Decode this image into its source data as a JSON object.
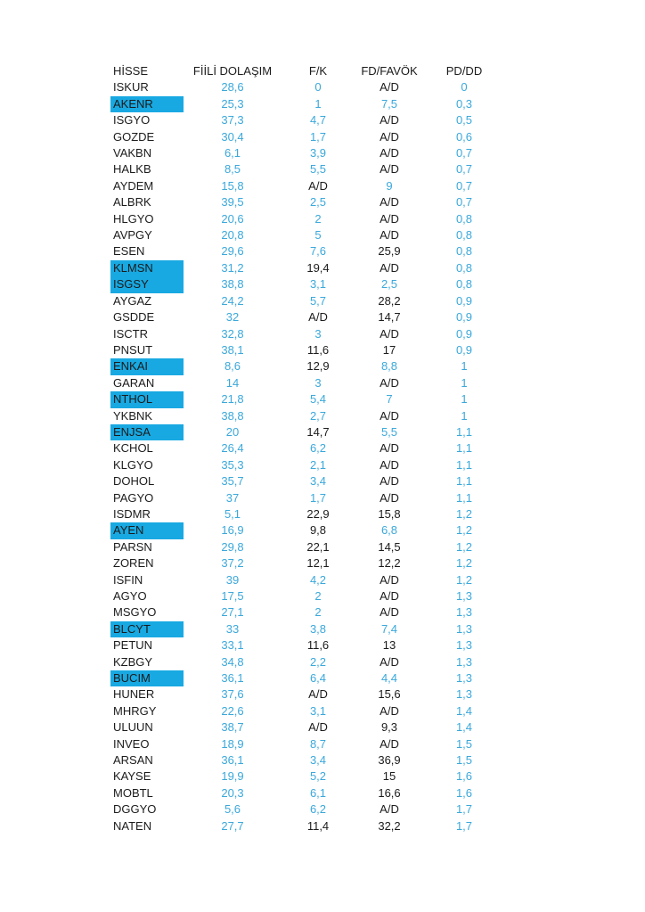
{
  "page": {
    "background": "#ffffff"
  },
  "colors": {
    "value_blue": "#3aa8db",
    "value_black": "#1b1b1b",
    "highlight_fill": "#18a9e2",
    "header_text": "#1b1b1b"
  },
  "table": {
    "columns": [
      "HİSSE",
      "FİİLİ DOLAŞIM",
      "F/K",
      "FD/FAVÖK",
      "PD/DD"
    ],
    "rows": [
      {
        "ticker": "ISKUR",
        "highlighted": false,
        "values": [
          "28,6",
          "0",
          "A/D",
          "0"
        ],
        "blue": [
          true,
          true,
          false,
          true
        ]
      },
      {
        "ticker": "AKENR",
        "highlighted": true,
        "values": [
          "25,3",
          "1",
          "7,5",
          "0,3"
        ],
        "blue": [
          true,
          true,
          true,
          true
        ]
      },
      {
        "ticker": "ISGYO",
        "highlighted": false,
        "values": [
          "37,3",
          "4,7",
          "A/D",
          "0,5"
        ],
        "blue": [
          true,
          true,
          false,
          true
        ]
      },
      {
        "ticker": "GOZDE",
        "highlighted": false,
        "values": [
          "30,4",
          "1,7",
          "A/D",
          "0,6"
        ],
        "blue": [
          true,
          true,
          false,
          true
        ]
      },
      {
        "ticker": "VAKBN",
        "highlighted": false,
        "values": [
          "6,1",
          "3,9",
          "A/D",
          "0,7"
        ],
        "blue": [
          true,
          true,
          false,
          true
        ]
      },
      {
        "ticker": "HALKB",
        "highlighted": false,
        "values": [
          "8,5",
          "5,5",
          "A/D",
          "0,7"
        ],
        "blue": [
          true,
          true,
          false,
          true
        ]
      },
      {
        "ticker": "AYDEM",
        "highlighted": false,
        "values": [
          "15,8",
          "A/D",
          "9",
          "0,7"
        ],
        "blue": [
          true,
          false,
          true,
          true
        ]
      },
      {
        "ticker": "ALBRK",
        "highlighted": false,
        "values": [
          "39,5",
          "2,5",
          "A/D",
          "0,7"
        ],
        "blue": [
          true,
          true,
          false,
          true
        ]
      },
      {
        "ticker": "HLGYO",
        "highlighted": false,
        "values": [
          "20,6",
          "2",
          "A/D",
          "0,8"
        ],
        "blue": [
          true,
          true,
          false,
          true
        ]
      },
      {
        "ticker": "AVPGY",
        "highlighted": false,
        "values": [
          "20,8",
          "5",
          "A/D",
          "0,8"
        ],
        "blue": [
          true,
          true,
          false,
          true
        ]
      },
      {
        "ticker": "ESEN",
        "highlighted": false,
        "values": [
          "29,6",
          "7,6",
          "25,9",
          "0,8"
        ],
        "blue": [
          true,
          true,
          false,
          true
        ]
      },
      {
        "ticker": "KLMSN",
        "highlighted": true,
        "values": [
          "31,2",
          "19,4",
          "A/D",
          "0,8"
        ],
        "blue": [
          true,
          false,
          false,
          true
        ]
      },
      {
        "ticker": "ISGSY",
        "highlighted": true,
        "values": [
          "38,8",
          "3,1",
          "2,5",
          "0,8"
        ],
        "blue": [
          true,
          true,
          true,
          true
        ]
      },
      {
        "ticker": "AYGAZ",
        "highlighted": false,
        "values": [
          "24,2",
          "5,7",
          "28,2",
          "0,9"
        ],
        "blue": [
          true,
          true,
          false,
          true
        ]
      },
      {
        "ticker": "GSDDE",
        "highlighted": false,
        "values": [
          "32",
          "A/D",
          "14,7",
          "0,9"
        ],
        "blue": [
          true,
          false,
          false,
          true
        ]
      },
      {
        "ticker": "ISCTR",
        "highlighted": false,
        "values": [
          "32,8",
          "3",
          "A/D",
          "0,9"
        ],
        "blue": [
          true,
          true,
          false,
          true
        ]
      },
      {
        "ticker": "PNSUT",
        "highlighted": false,
        "values": [
          "38,1",
          "11,6",
          "17",
          "0,9"
        ],
        "blue": [
          true,
          false,
          false,
          true
        ]
      },
      {
        "ticker": "ENKAI",
        "highlighted": true,
        "values": [
          "8,6",
          "12,9",
          "8,8",
          "1"
        ],
        "blue": [
          true,
          false,
          true,
          true
        ]
      },
      {
        "ticker": "GARAN",
        "highlighted": false,
        "values": [
          "14",
          "3",
          "A/D",
          "1"
        ],
        "blue": [
          true,
          true,
          false,
          true
        ]
      },
      {
        "ticker": "NTHOL",
        "highlighted": true,
        "values": [
          "21,8",
          "5,4",
          "7",
          "1"
        ],
        "blue": [
          true,
          true,
          true,
          true
        ]
      },
      {
        "ticker": "YKBNK",
        "highlighted": false,
        "values": [
          "38,8",
          "2,7",
          "A/D",
          "1"
        ],
        "blue": [
          true,
          true,
          false,
          true
        ]
      },
      {
        "ticker": "ENJSA",
        "highlighted": true,
        "values": [
          "20",
          "14,7",
          "5,5",
          "1,1"
        ],
        "blue": [
          true,
          false,
          true,
          true
        ]
      },
      {
        "ticker": "KCHOL",
        "highlighted": false,
        "values": [
          "26,4",
          "6,2",
          "A/D",
          "1,1"
        ],
        "blue": [
          true,
          true,
          false,
          true
        ]
      },
      {
        "ticker": "KLGYO",
        "highlighted": false,
        "values": [
          "35,3",
          "2,1",
          "A/D",
          "1,1"
        ],
        "blue": [
          true,
          true,
          false,
          true
        ]
      },
      {
        "ticker": "DOHOL",
        "highlighted": false,
        "values": [
          "35,7",
          "3,4",
          "A/D",
          "1,1"
        ],
        "blue": [
          true,
          true,
          false,
          true
        ]
      },
      {
        "ticker": "PAGYO",
        "highlighted": false,
        "values": [
          "37",
          "1,7",
          "A/D",
          "1,1"
        ],
        "blue": [
          true,
          true,
          false,
          true
        ]
      },
      {
        "ticker": "ISDMR",
        "highlighted": false,
        "values": [
          "5,1",
          "22,9",
          "15,8",
          "1,2"
        ],
        "blue": [
          true,
          false,
          false,
          true
        ]
      },
      {
        "ticker": "AYEN",
        "highlighted": true,
        "values": [
          "16,9",
          "9,8",
          "6,8",
          "1,2"
        ],
        "blue": [
          true,
          false,
          true,
          true
        ]
      },
      {
        "ticker": "PARSN",
        "highlighted": false,
        "values": [
          "29,8",
          "22,1",
          "14,5",
          "1,2"
        ],
        "blue": [
          true,
          false,
          false,
          true
        ]
      },
      {
        "ticker": "ZOREN",
        "highlighted": false,
        "values": [
          "37,2",
          "12,1",
          "12,2",
          "1,2"
        ],
        "blue": [
          true,
          false,
          false,
          true
        ]
      },
      {
        "ticker": "ISFIN",
        "highlighted": false,
        "values": [
          "39",
          "4,2",
          "A/D",
          "1,2"
        ],
        "blue": [
          true,
          true,
          false,
          true
        ]
      },
      {
        "ticker": "AGYO",
        "highlighted": false,
        "values": [
          "17,5",
          "2",
          "A/D",
          "1,3"
        ],
        "blue": [
          true,
          true,
          false,
          true
        ]
      },
      {
        "ticker": "MSGYO",
        "highlighted": false,
        "values": [
          "27,1",
          "2",
          "A/D",
          "1,3"
        ],
        "blue": [
          true,
          true,
          false,
          true
        ]
      },
      {
        "ticker": "BLCYT",
        "highlighted": true,
        "values": [
          "33",
          "3,8",
          "7,4",
          "1,3"
        ],
        "blue": [
          true,
          true,
          true,
          true
        ]
      },
      {
        "ticker": "PETUN",
        "highlighted": false,
        "values": [
          "33,1",
          "11,6",
          "13",
          "1,3"
        ],
        "blue": [
          true,
          false,
          false,
          true
        ]
      },
      {
        "ticker": "KZBGY",
        "highlighted": false,
        "values": [
          "34,8",
          "2,2",
          "A/D",
          "1,3"
        ],
        "blue": [
          true,
          true,
          false,
          true
        ]
      },
      {
        "ticker": "BUCIM",
        "highlighted": true,
        "values": [
          "36,1",
          "6,4",
          "4,4",
          "1,3"
        ],
        "blue": [
          true,
          true,
          true,
          true
        ]
      },
      {
        "ticker": "HUNER",
        "highlighted": false,
        "values": [
          "37,6",
          "A/D",
          "15,6",
          "1,3"
        ],
        "blue": [
          true,
          false,
          false,
          true
        ]
      },
      {
        "ticker": "MHRGY",
        "highlighted": false,
        "values": [
          "22,6",
          "3,1",
          "A/D",
          "1,4"
        ],
        "blue": [
          true,
          true,
          false,
          true
        ]
      },
      {
        "ticker": "ULUUN",
        "highlighted": false,
        "values": [
          "38,7",
          "A/D",
          "9,3",
          "1,4"
        ],
        "blue": [
          true,
          false,
          false,
          true
        ]
      },
      {
        "ticker": "INVEO",
        "highlighted": false,
        "values": [
          "18,9",
          "8,7",
          "A/D",
          "1,5"
        ],
        "blue": [
          true,
          true,
          false,
          true
        ]
      },
      {
        "ticker": "ARSAN",
        "highlighted": false,
        "values": [
          "36,1",
          "3,4",
          "36,9",
          "1,5"
        ],
        "blue": [
          true,
          true,
          false,
          true
        ]
      },
      {
        "ticker": "KAYSE",
        "highlighted": false,
        "values": [
          "19,9",
          "5,2",
          "15",
          "1,6"
        ],
        "blue": [
          true,
          true,
          false,
          true
        ]
      },
      {
        "ticker": "MOBTL",
        "highlighted": false,
        "values": [
          "20,3",
          "6,1",
          "16,6",
          "1,6"
        ],
        "blue": [
          true,
          true,
          false,
          true
        ]
      },
      {
        "ticker": "DGGYO",
        "highlighted": false,
        "values": [
          "5,6",
          "6,2",
          "A/D",
          "1,7"
        ],
        "blue": [
          true,
          true,
          false,
          true
        ]
      },
      {
        "ticker": "NATEN",
        "highlighted": false,
        "values": [
          "27,7",
          "11,4",
          "32,2",
          "1,7"
        ],
        "blue": [
          true,
          false,
          false,
          true
        ]
      }
    ]
  }
}
